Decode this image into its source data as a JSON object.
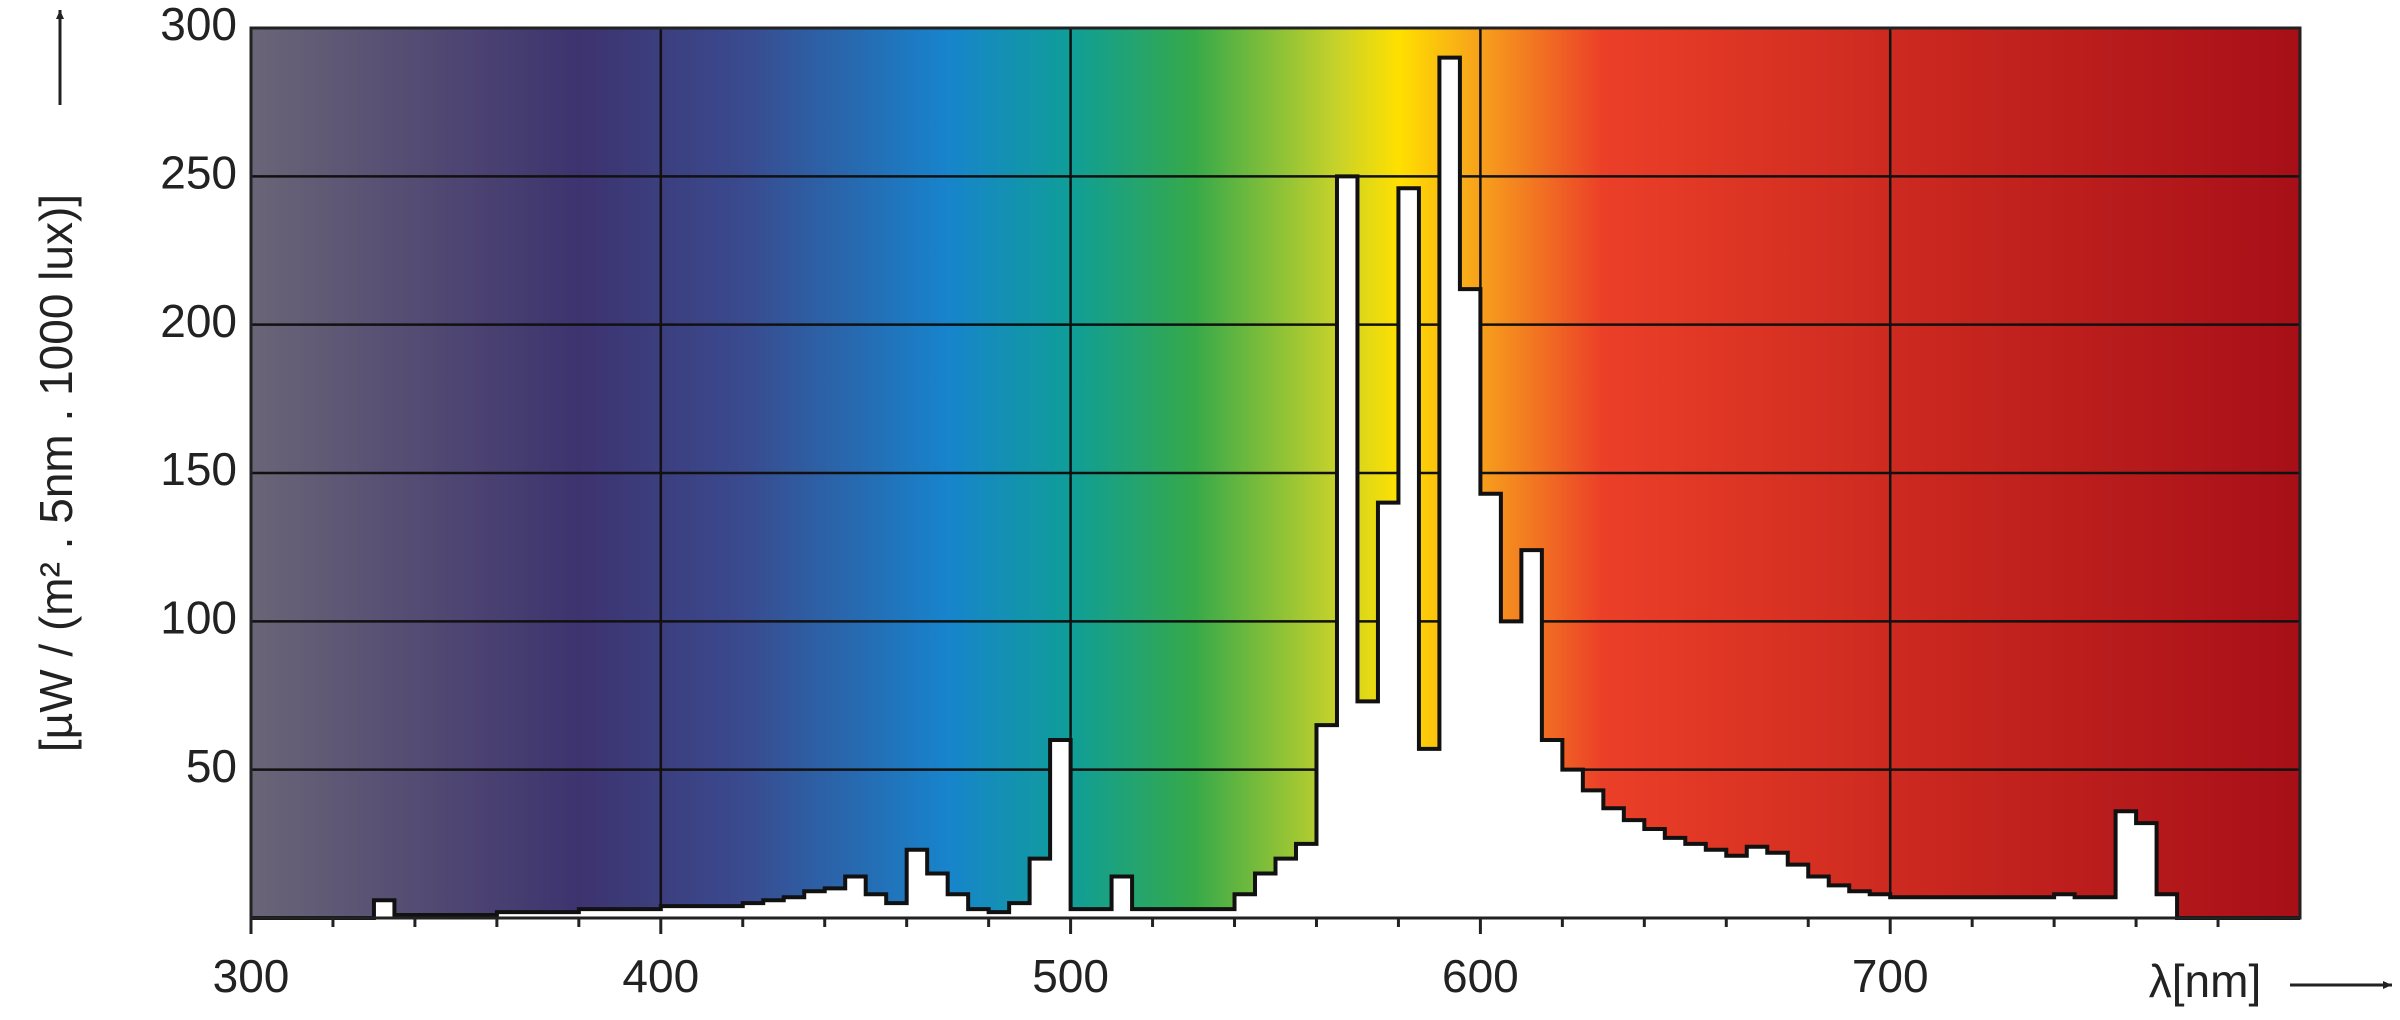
{
  "chart_data": {
    "type": "histogram",
    "y_label": "[µW / (m² . 5nm . 1000 lux)]",
    "x_label": "λ[nm]",
    "bins": [
      300,
      305,
      310,
      315,
      320,
      325,
      330,
      335,
      340,
      345,
      350,
      355,
      360,
      365,
      370,
      375,
      380,
      385,
      390,
      395,
      400,
      405,
      410,
      415,
      420,
      425,
      430,
      435,
      440,
      445,
      450,
      455,
      460,
      465,
      470,
      475,
      480,
      485,
      490,
      495,
      500,
      505,
      510,
      515,
      520,
      525,
      530,
      535,
      540,
      545,
      550,
      555,
      560,
      565,
      570,
      575,
      580,
      585,
      590,
      595,
      600,
      605,
      610,
      615,
      620,
      625,
      630,
      635,
      640,
      645,
      650,
      655,
      660,
      665,
      670,
      675,
      680,
      685,
      690,
      695,
      700,
      705,
      710,
      715,
      720,
      725,
      730,
      735,
      740,
      745,
      750,
      755,
      760,
      765,
      770,
      775,
      780,
      785,
      790,
      795,
      800
    ],
    "values": [
      0,
      0,
      0,
      0,
      0,
      0,
      6,
      1,
      1,
      1,
      1,
      1,
      2,
      2,
      2,
      2,
      3,
      3,
      3,
      3,
      4,
      4,
      4,
      4,
      5,
      6,
      7,
      9,
      10,
      14,
      8,
      5,
      23,
      15,
      8,
      3,
      2,
      5,
      20,
      60,
      3,
      3,
      14,
      3,
      3,
      3,
      3,
      3,
      8,
      15,
      20,
      25,
      65,
      250,
      73,
      140,
      246,
      57,
      290,
      212,
      143,
      100,
      124,
      60,
      50,
      43,
      37,
      33,
      30,
      27,
      25,
      23,
      21,
      24,
      22,
      18,
      14,
      11,
      9,
      8,
      7,
      7,
      7,
      7,
      7,
      7,
      7,
      7,
      8,
      7,
      7,
      36,
      32,
      8,
      0,
      0,
      0,
      0,
      0,
      0
    ],
    "color": "#ffffff",
    "xlim": [
      300,
      800
    ],
    "ylim": [
      0,
      300
    ],
    "xticks": [
      300,
      400,
      500,
      600,
      700
    ],
    "xminorticks": [
      320,
      340,
      360,
      380,
      420,
      440,
      460,
      480,
      520,
      540,
      560,
      580,
      620,
      640,
      660,
      680,
      720,
      740,
      760,
      780
    ],
    "yticks": [
      50,
      100,
      150,
      200,
      250,
      300
    ],
    "grid": true
  }
}
